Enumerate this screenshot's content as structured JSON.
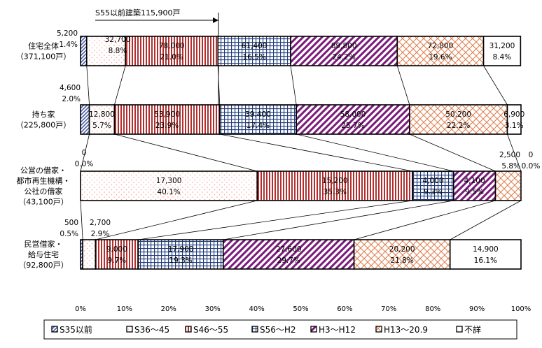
{
  "chart_data": {
    "type": "bar",
    "orientation": "horizontal",
    "stacked": "percent",
    "xlim": [
      0,
      100
    ],
    "x_ticks": [
      "0%",
      "10%",
      "20%",
      "30%",
      "40%",
      "50%",
      "60%",
      "70%",
      "80%",
      "90%",
      "100%"
    ],
    "grid": false,
    "legend_position": "bottom",
    "annotation": "S55以前建築115,900戸",
    "series": [
      {
        "name": "S35以前",
        "color": "#4a5fa8"
      },
      {
        "name": "S36～45",
        "color": "#ff9c8a"
      },
      {
        "name": "S46～55",
        "color": "#b03030"
      },
      {
        "name": "S56～H2",
        "color": "#1f3c7a"
      },
      {
        "name": "H3～H12",
        "color": "#7a1a7a"
      },
      {
        "name": "H13～20.9",
        "color": "#e08050"
      },
      {
        "name": "不詳",
        "color": "#ffffff"
      }
    ],
    "rows": [
      {
        "label_lines": [
          "住宅全体",
          "（371,100戸）"
        ],
        "segments": [
          {
            "count": "5,200",
            "pct": 1.4
          },
          {
            "count": "32,700",
            "pct": 8.8
          },
          {
            "count": "78,000",
            "pct": 21.0
          },
          {
            "count": "61,400",
            "pct": 16.5
          },
          {
            "count": "89,800",
            "pct": 24.2
          },
          {
            "count": "72,800",
            "pct": 19.6
          },
          {
            "count": "31,200",
            "pct": 8.4
          }
        ]
      },
      {
        "label_lines": [
          "持ち家",
          "（225,800戸）"
        ],
        "segments": [
          {
            "count": "4,600",
            "pct": 2.0
          },
          {
            "count": "12,800",
            "pct": 5.7
          },
          {
            "count": "53,900",
            "pct": 23.9
          },
          {
            "count": "39,400",
            "pct": 17.4
          },
          {
            "count": "58,000",
            "pct": 25.7
          },
          {
            "count": "50,200",
            "pct": 22.2
          },
          {
            "count": "6,900",
            "pct": 3.1
          }
        ]
      },
      {
        "label_lines": [
          "公営の借家・",
          "都市再生機構・",
          "公社の借家",
          "（43,100戸）"
        ],
        "segments": [
          {
            "count": "0",
            "pct": 0.0
          },
          {
            "count": "17,300",
            "pct": 40.1
          },
          {
            "count": "15,200",
            "pct": 35.3
          },
          {
            "count": "4,000",
            "pct": 9.3
          },
          {
            "count": "4,100",
            "pct": 9.5
          },
          {
            "count": "2,500",
            "pct": 5.8
          },
          {
            "count": "0",
            "pct": 0.0
          }
        ]
      },
      {
        "label_lines": [
          "民営借家・",
          "給与住宅",
          "（92,800戸）"
        ],
        "segments": [
          {
            "count": "500",
            "pct": 0.5
          },
          {
            "count": "2,700",
            "pct": 2.9
          },
          {
            "count": "9,000",
            "pct": 9.7
          },
          {
            "count": "17,900",
            "pct": 19.3
          },
          {
            "count": "27,600",
            "pct": 29.7
          },
          {
            "count": "20,200",
            "pct": 21.8
          },
          {
            "count": "14,900",
            "pct": 16.1
          }
        ]
      }
    ]
  }
}
